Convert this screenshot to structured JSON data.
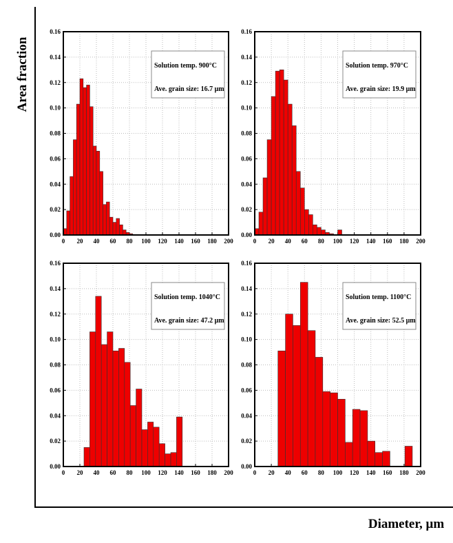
{
  "ylabel": "Area fraction",
  "xlabel": "Diameter, μm",
  "chart_data": [
    {
      "type": "histogram",
      "annotations": [
        "Solution temp. 900°C",
        "Ave. grain size: 16.7 μm"
      ],
      "color": "#ee0000",
      "bins": [
        0,
        4,
        8,
        12,
        16,
        20,
        24,
        28,
        32,
        36,
        40,
        44,
        48,
        52,
        56,
        60,
        64,
        68,
        72,
        76,
        80,
        84
      ],
      "values": [
        0.005,
        0.019,
        0.046,
        0.075,
        0.103,
        0.123,
        0.116,
        0.118,
        0.101,
        0.07,
        0.066,
        0.05,
        0.024,
        0.026,
        0.014,
        0.01,
        0.013,
        0.008,
        0.004,
        0.002,
        0.001
      ],
      "xlim": [
        0,
        200
      ],
      "xticks": [
        0,
        20,
        40,
        60,
        80,
        100,
        120,
        140,
        160,
        180,
        200
      ],
      "ylim": [
        0,
        0.16
      ],
      "yticks": [
        {
          "value": 0,
          "label": "0.00"
        },
        {
          "value": 0.02,
          "label": "0.02"
        },
        {
          "value": 0.04,
          "label": "0.04"
        },
        {
          "value": 0.06,
          "label": "0.06"
        },
        {
          "value": 0.08,
          "label": "0.08"
        },
        {
          "value": 0.1,
          "label": "0.10"
        },
        {
          "value": 0.12,
          "label": "0.12"
        },
        {
          "value": 0.14,
          "label": "0.14"
        },
        {
          "value": 0.16,
          "label": "0.16"
        }
      ],
      "grid": true
    },
    {
      "type": "histogram",
      "annotations": [
        "Solution temp. 970°C",
        "Ave. grain size: 19.9 μm"
      ],
      "color": "#ee0000",
      "bins": [
        0,
        5,
        10,
        15,
        20,
        25,
        30,
        35,
        40,
        45,
        50,
        55,
        60,
        65,
        70,
        75,
        80,
        85,
        90,
        95,
        100,
        105
      ],
      "values": [
        0.005,
        0.018,
        0.045,
        0.075,
        0.109,
        0.129,
        0.13,
        0.122,
        0.103,
        0.086,
        0.05,
        0.037,
        0.02,
        0.016,
        0.008,
        0.006,
        0.004,
        0.002,
        0.001,
        0,
        0.004
      ],
      "xlim": [
        0,
        200
      ],
      "xticks": [
        0,
        20,
        40,
        60,
        80,
        100,
        120,
        140,
        160,
        180,
        200
      ],
      "ylim": [
        0,
        0.16
      ],
      "yticks": [
        {
          "value": 0,
          "label": "0.00"
        },
        {
          "value": 0.02,
          "label": "0.02"
        },
        {
          "value": 0.04,
          "label": "0.04"
        },
        {
          "value": 0.06,
          "label": "0.06"
        },
        {
          "value": 0.08,
          "label": "0.08"
        },
        {
          "value": 0.1,
          "label": "0.10"
        },
        {
          "value": 0.12,
          "label": "0.12"
        },
        {
          "value": 0.14,
          "label": "0.14"
        },
        {
          "value": 0.16,
          "label": "0.16"
        }
      ],
      "grid": true
    },
    {
      "type": "histogram",
      "annotations": [
        "Solution temp. 1040°C",
        "Ave. grain size: 47.2 μm"
      ],
      "color": "#ee0000",
      "bins": [
        25,
        32,
        39,
        46,
        53,
        60,
        67,
        74,
        81,
        88,
        95,
        102,
        109,
        116,
        123,
        130,
        137,
        144
      ],
      "values": [
        0.015,
        0.106,
        0.134,
        0.096,
        0.106,
        0.091,
        0.093,
        0.082,
        0.048,
        0.061,
        0.029,
        0.035,
        0.031,
        0.018,
        0.01,
        0.011,
        0.039
      ],
      "xlim": [
        0,
        200
      ],
      "xticks": [
        0,
        20,
        40,
        60,
        80,
        100,
        120,
        140,
        160,
        180,
        200
      ],
      "ylim": [
        0,
        0.16
      ],
      "yticks": [
        {
          "value": 0,
          "label": "0.00"
        },
        {
          "value": 0.02,
          "label": "0.02"
        },
        {
          "value": 0.04,
          "label": "0.04"
        },
        {
          "value": 0.06,
          "label": "0.06"
        },
        {
          "value": 0.08,
          "label": "0.08"
        },
        {
          "value": 0.1,
          "label": "0.10"
        },
        {
          "value": 0.12,
          "label": "0.12"
        },
        {
          "value": 0.14,
          "label": "0.14"
        },
        {
          "value": 0.16,
          "label": "0.16"
        }
      ],
      "grid": true
    },
    {
      "type": "histogram",
      "annotations": [
        "Solution temp. 1100°C",
        "Ave. grain size: 52.5 μm"
      ],
      "color": "#ee0000",
      "bins": [
        28,
        37,
        46,
        55,
        64,
        73,
        82,
        91,
        100,
        109,
        118,
        127,
        136,
        145,
        154,
        163,
        172,
        181,
        190
      ],
      "values": [
        0.091,
        0.12,
        0.111,
        0.145,
        0.107,
        0.086,
        0.059,
        0.058,
        0.053,
        0.019,
        0.045,
        0.044,
        0.02,
        0.011,
        0.012,
        0,
        0,
        0.016
      ],
      "xlim": [
        0,
        200
      ],
      "xticks": [
        0,
        20,
        40,
        60,
        80,
        100,
        120,
        140,
        160,
        180,
        200
      ],
      "ylim": [
        0,
        0.16
      ],
      "yticks": [
        {
          "value": 0,
          "label": "0.00"
        },
        {
          "value": 0.02,
          "label": "0.02"
        },
        {
          "value": 0.04,
          "label": "0.04"
        },
        {
          "value": 0.06,
          "label": "0.06"
        },
        {
          "value": 0.08,
          "label": "0.08"
        },
        {
          "value": 0.1,
          "label": "0.10"
        },
        {
          "value": 0.12,
          "label": "0.12"
        },
        {
          "value": 0.14,
          "label": "0.14"
        },
        {
          "value": 0.16,
          "label": "0.16"
        }
      ],
      "grid": true
    }
  ]
}
